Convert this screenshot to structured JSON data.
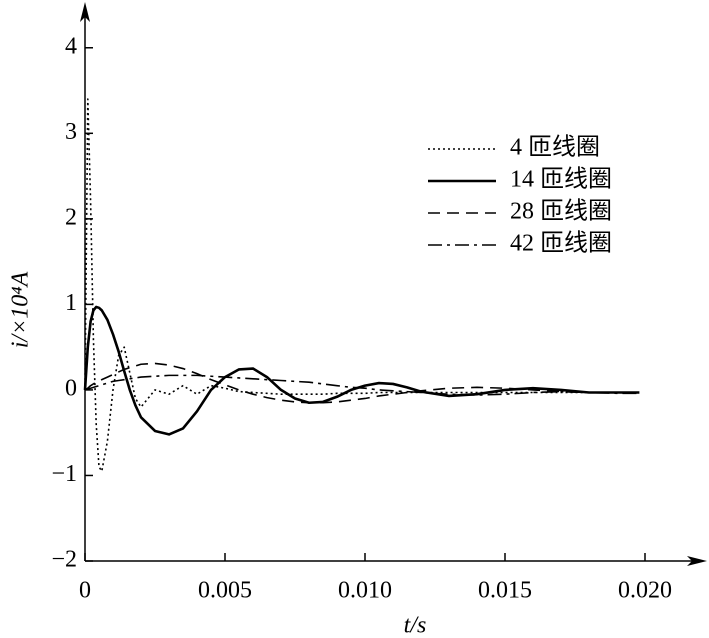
{
  "chart_data": {
    "type": "line",
    "x_label": "t/s",
    "y_label": "i/×10⁴A",
    "x": [
      0,
      0.0001,
      0.0002,
      0.0003,
      0.0004,
      0.0005,
      0.0006,
      0.0008,
      0.001,
      0.0012,
      0.0014,
      0.0016,
      0.0018,
      0.002,
      0.0025,
      0.003,
      0.0035,
      0.004,
      0.0045,
      0.005,
      0.0055,
      0.006,
      0.0065,
      0.007,
      0.0075,
      0.008,
      0.0085,
      0.009,
      0.0095,
      0.01,
      0.0105,
      0.011,
      0.0115,
      0.012,
      0.013,
      0.014,
      0.015,
      0.016,
      0.017,
      0.018,
      0.019,
      0.0198
    ],
    "series": [
      {
        "name": "4 匝线圈",
        "color": "#000000",
        "dash": "dotted",
        "values": [
          0,
          3.4,
          2.2,
          0.6,
          -0.4,
          -0.9,
          -0.95,
          -0.6,
          0.0,
          0.4,
          0.5,
          0.2,
          -0.1,
          -0.2,
          0.0,
          -0.05,
          0.05,
          -0.05,
          0.05,
          0.02,
          -0.02,
          -0.03,
          -0.04,
          -0.05,
          -0.05,
          -0.05,
          -0.05,
          -0.04,
          -0.04,
          -0.04,
          -0.03,
          -0.03,
          -0.03,
          -0.03,
          -0.03,
          -0.03,
          -0.03,
          -0.03,
          -0.03,
          -0.03,
          -0.03,
          -0.03
        ]
      },
      {
        "name": "14 匝线圈",
        "color": "#000000",
        "dash": "solid",
        "values": [
          0,
          0.5,
          0.8,
          0.93,
          0.97,
          0.96,
          0.93,
          0.82,
          0.65,
          0.45,
          0.22,
          0.0,
          -0.18,
          -0.32,
          -0.48,
          -0.52,
          -0.45,
          -0.25,
          0.0,
          0.15,
          0.24,
          0.25,
          0.15,
          0.0,
          -0.1,
          -0.15,
          -0.14,
          -0.08,
          0.0,
          0.05,
          0.08,
          0.07,
          0.03,
          -0.02,
          -0.07,
          -0.05,
          0.0,
          0.02,
          0.0,
          -0.03,
          -0.03,
          -0.03
        ]
      },
      {
        "name": "28 匝线圈",
        "color": "#000000",
        "dash": "dashed",
        "values": [
          0,
          0.02,
          0.05,
          0.07,
          0.09,
          0.1,
          0.12,
          0.15,
          0.18,
          0.21,
          0.24,
          0.26,
          0.28,
          0.3,
          0.31,
          0.29,
          0.25,
          0.19,
          0.12,
          0.06,
          0.0,
          -0.05,
          -0.09,
          -0.12,
          -0.14,
          -0.15,
          -0.15,
          -0.14,
          -0.12,
          -0.1,
          -0.07,
          -0.05,
          -0.03,
          -0.01,
          0.02,
          0.03,
          0.02,
          0.0,
          -0.02,
          -0.03,
          -0.03,
          -0.03
        ]
      },
      {
        "name": "42 匝线圈",
        "color": "#000000",
        "dash": "dashdot",
        "values": [
          0,
          0.01,
          0.02,
          0.03,
          0.04,
          0.05,
          0.06,
          0.08,
          0.1,
          0.11,
          0.12,
          0.13,
          0.14,
          0.15,
          0.16,
          0.17,
          0.17,
          0.17,
          0.16,
          0.15,
          0.14,
          0.13,
          0.12,
          0.11,
          0.1,
          0.09,
          0.07,
          0.05,
          0.03,
          0.02,
          0.0,
          -0.01,
          -0.02,
          -0.03,
          -0.05,
          -0.06,
          -0.05,
          -0.03,
          -0.02,
          -0.03,
          -0.04,
          -0.04
        ]
      }
    ],
    "xlim": [
      0,
      0.022
    ],
    "ylim": [
      -2,
      4.5
    ],
    "xticks": [
      0,
      0.005,
      {
        "value": 0.01,
        "label": "0.010"
      },
      0.015,
      {
        "value": 0.02,
        "label": "0.020"
      }
    ],
    "yticks": [
      {
        "value": -2,
        "label": "−2"
      },
      {
        "value": -1,
        "label": "−1"
      },
      0,
      1,
      2,
      3,
      4
    ],
    "legend": "upper right"
  }
}
